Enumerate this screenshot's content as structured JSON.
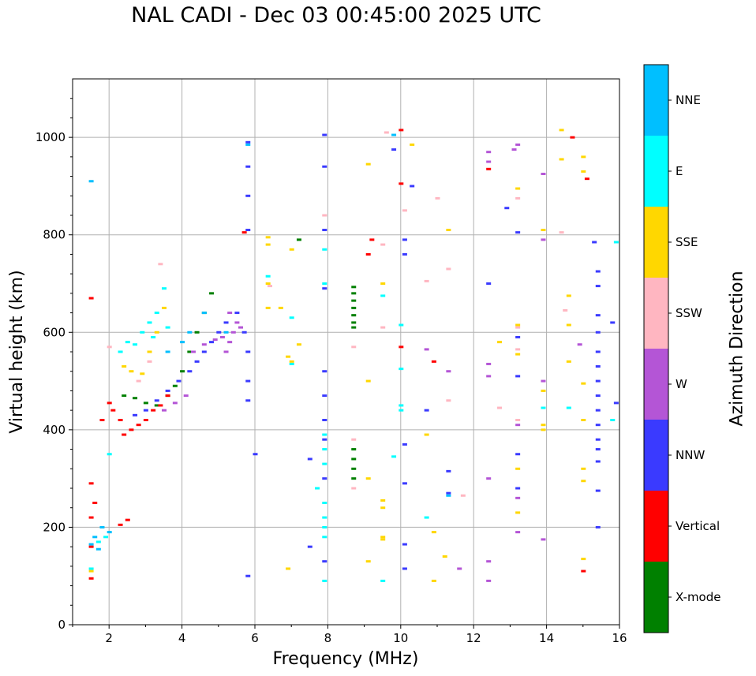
{
  "title": "NAL CADI - Dec 03 00:45:00 2025 UTC",
  "chart_data": {
    "type": "scatter",
    "title": "NAL CADI - Dec 03 00:45:00 2025 UTC",
    "xlabel": "Frequency (MHz)",
    "ylabel": "Virtual height (km)",
    "xlim": [
      1,
      16
    ],
    "ylim": [
      0,
      1120
    ],
    "xticks": [
      2,
      4,
      6,
      8,
      10,
      12,
      14,
      16
    ],
    "yticks": [
      0,
      200,
      400,
      600,
      800,
      1000
    ],
    "grid": true,
    "colorbar": {
      "label": "Azimuth Direction",
      "categories": [
        "X-mode",
        "Vertical",
        "NNW",
        "W",
        "SSW",
        "SSE",
        "E",
        "NNE"
      ],
      "colors": [
        "#008000",
        "#ff0000",
        "#3a3aff",
        "#b455d6",
        "#ffb6c1",
        "#ffd700",
        "#00ffff",
        "#00bfff"
      ]
    },
    "series": [
      {
        "name": "X-mode",
        "color": "#008000",
        "points": [
          [
            2.4,
            470
          ],
          [
            2.7,
            465
          ],
          [
            3.0,
            455
          ],
          [
            3.3,
            450
          ],
          [
            3.6,
            470
          ],
          [
            3.8,
            490
          ],
          [
            4.0,
            520
          ],
          [
            4.2,
            560
          ],
          [
            4.4,
            600
          ],
          [
            4.6,
            640
          ],
          [
            4.8,
            680
          ],
          [
            8.7,
            693
          ],
          [
            8.7,
            680
          ],
          [
            8.7,
            665
          ],
          [
            8.7,
            650
          ],
          [
            8.7,
            635
          ],
          [
            8.7,
            620
          ],
          [
            8.7,
            610
          ],
          [
            8.7,
            360
          ],
          [
            8.7,
            340
          ],
          [
            8.7,
            320
          ],
          [
            8.7,
            300
          ],
          [
            7.2,
            790
          ]
        ]
      },
      {
        "name": "Vertical",
        "color": "#ff0000",
        "points": [
          [
            1.5,
            670
          ],
          [
            1.5,
            290
          ],
          [
            1.5,
            220
          ],
          [
            1.6,
            250
          ],
          [
            1.5,
            160
          ],
          [
            1.5,
            95
          ],
          [
            1.8,
            420
          ],
          [
            2.0,
            455
          ],
          [
            2.1,
            440
          ],
          [
            2.3,
            420
          ],
          [
            2.4,
            390
          ],
          [
            2.6,
            400
          ],
          [
            2.8,
            410
          ],
          [
            3.0,
            420
          ],
          [
            3.2,
            440
          ],
          [
            3.4,
            450
          ],
          [
            3.6,
            470
          ],
          [
            5.7,
            805
          ],
          [
            9.2,
            790
          ],
          [
            9.1,
            760
          ],
          [
            10.0,
            1015
          ],
          [
            10.0,
            905
          ],
          [
            10.0,
            570
          ],
          [
            10.9,
            540
          ],
          [
            14.7,
            1000
          ],
          [
            15.1,
            915
          ],
          [
            15.0,
            110
          ],
          [
            12.4,
            935
          ],
          [
            2.3,
            205
          ],
          [
            2.5,
            215
          ]
        ]
      },
      {
        "name": "NNW",
        "color": "#3a3aff",
        "points": [
          [
            2.7,
            430
          ],
          [
            3.0,
            440
          ],
          [
            3.3,
            460
          ],
          [
            3.6,
            480
          ],
          [
            3.9,
            500
          ],
          [
            4.2,
            520
          ],
          [
            4.4,
            540
          ],
          [
            4.6,
            560
          ],
          [
            4.8,
            580
          ],
          [
            5.0,
            600
          ],
          [
            5.2,
            620
          ],
          [
            5.5,
            640
          ],
          [
            5.7,
            600
          ],
          [
            5.8,
            560
          ],
          [
            5.8,
            500
          ],
          [
            5.8,
            460
          ],
          [
            5.8,
            100
          ],
          [
            5.8,
            990
          ],
          [
            5.8,
            940
          ],
          [
            5.8,
            880
          ],
          [
            5.8,
            810
          ],
          [
            6.0,
            350
          ],
          [
            7.5,
            340
          ],
          [
            7.5,
            160
          ],
          [
            7.9,
            1005
          ],
          [
            7.9,
            940
          ],
          [
            7.9,
            810
          ],
          [
            7.9,
            690
          ],
          [
            7.9,
            520
          ],
          [
            7.9,
            470
          ],
          [
            7.9,
            420
          ],
          [
            7.9,
            380
          ],
          [
            7.9,
            300
          ],
          [
            7.9,
            130
          ],
          [
            9.8,
            975
          ],
          [
            10.1,
            790
          ],
          [
            10.1,
            760
          ],
          [
            10.1,
            370
          ],
          [
            10.1,
            290
          ],
          [
            10.1,
            165
          ],
          [
            10.1,
            115
          ],
          [
            10.3,
            900
          ],
          [
            10.7,
            440
          ],
          [
            11.3,
            270
          ],
          [
            11.3,
            315
          ],
          [
            12.4,
            700
          ],
          [
            12.9,
            855
          ],
          [
            13.2,
            805
          ],
          [
            13.2,
            590
          ],
          [
            13.2,
            510
          ],
          [
            13.2,
            350
          ],
          [
            13.2,
            280
          ],
          [
            15.3,
            785
          ],
          [
            15.4,
            725
          ],
          [
            15.4,
            695
          ],
          [
            15.4,
            635
          ],
          [
            15.4,
            600
          ],
          [
            15.4,
            560
          ],
          [
            15.4,
            530
          ],
          [
            15.4,
            500
          ],
          [
            15.4,
            470
          ],
          [
            15.4,
            440
          ],
          [
            15.4,
            410
          ],
          [
            15.4,
            380
          ],
          [
            15.4,
            360
          ],
          [
            15.4,
            335
          ],
          [
            15.4,
            275
          ],
          [
            15.4,
            200
          ],
          [
            15.8,
            620
          ],
          [
            15.9,
            455
          ]
        ]
      },
      {
        "name": "W",
        "color": "#b455d6",
        "points": [
          [
            4.3,
            560
          ],
          [
            4.6,
            575
          ],
          [
            4.9,
            585
          ],
          [
            5.1,
            590
          ],
          [
            5.3,
            580
          ],
          [
            5.4,
            600
          ],
          [
            5.2,
            560
          ],
          [
            5.5,
            620
          ],
          [
            5.3,
            640
          ],
          [
            5.6,
            610
          ],
          [
            3.5,
            440
          ],
          [
            3.8,
            455
          ],
          [
            4.1,
            470
          ],
          [
            10.7,
            565
          ],
          [
            11.3,
            520
          ],
          [
            12.4,
            970
          ],
          [
            12.4,
            950
          ],
          [
            12.4,
            535
          ],
          [
            12.4,
            510
          ],
          [
            12.4,
            300
          ],
          [
            12.4,
            130
          ],
          [
            12.4,
            90
          ],
          [
            13.2,
            985
          ],
          [
            13.2,
            410
          ],
          [
            13.2,
            260
          ],
          [
            13.2,
            190
          ],
          [
            13.9,
            790
          ],
          [
            13.9,
            500
          ],
          [
            13.9,
            925
          ],
          [
            13.9,
            175
          ],
          [
            14.9,
            575
          ],
          [
            11.6,
            115
          ],
          [
            13.1,
            975
          ]
        ]
      },
      {
        "name": "SSW",
        "color": "#ffb6c1",
        "points": [
          [
            2.0,
            570
          ],
          [
            2.8,
            500
          ],
          [
            3.1,
            540
          ],
          [
            3.4,
            740
          ],
          [
            6.4,
            695
          ],
          [
            7.9,
            840
          ],
          [
            8.7,
            570
          ],
          [
            8.7,
            380
          ],
          [
            8.7,
            280
          ],
          [
            9.5,
            780
          ],
          [
            9.5,
            610
          ],
          [
            10.1,
            850
          ],
          [
            10.7,
            705
          ],
          [
            11.0,
            875
          ],
          [
            11.3,
            460
          ],
          [
            11.3,
            730
          ],
          [
            11.7,
            265
          ],
          [
            12.7,
            445
          ],
          [
            13.2,
            875
          ],
          [
            13.2,
            610
          ],
          [
            13.2,
            565
          ],
          [
            13.2,
            420
          ],
          [
            14.4,
            805
          ],
          [
            14.5,
            645
          ],
          [
            9.6,
            1010
          ]
        ]
      },
      {
        "name": "SSE",
        "color": "#ffd700",
        "points": [
          [
            2.4,
            530
          ],
          [
            2.6,
            520
          ],
          [
            2.9,
            515
          ],
          [
            3.1,
            560
          ],
          [
            3.3,
            600
          ],
          [
            3.5,
            650
          ],
          [
            6.35,
            795
          ],
          [
            6.35,
            780
          ],
          [
            6.35,
            650
          ],
          [
            6.35,
            700
          ],
          [
            6.7,
            650
          ],
          [
            6.9,
            550
          ],
          [
            7.0,
            540
          ],
          [
            7.0,
            770
          ],
          [
            7.2,
            575
          ],
          [
            6.9,
            115
          ],
          [
            9.1,
            945
          ],
          [
            9.1,
            500
          ],
          [
            9.1,
            300
          ],
          [
            9.1,
            130
          ],
          [
            9.5,
            255
          ],
          [
            9.5,
            240
          ],
          [
            9.5,
            180
          ],
          [
            9.5,
            175
          ],
          [
            9.5,
            700
          ],
          [
            10.3,
            985
          ],
          [
            10.7,
            390
          ],
          [
            10.9,
            190
          ],
          [
            10.9,
            90
          ],
          [
            11.2,
            140
          ],
          [
            11.3,
            810
          ],
          [
            12.7,
            580
          ],
          [
            13.2,
            895
          ],
          [
            13.2,
            615
          ],
          [
            13.2,
            555
          ],
          [
            13.2,
            230
          ],
          [
            13.2,
            320
          ],
          [
            13.9,
            810
          ],
          [
            13.9,
            480
          ],
          [
            13.9,
            410
          ],
          [
            13.9,
            400
          ],
          [
            14.4,
            1015
          ],
          [
            14.4,
            955
          ],
          [
            14.6,
            675
          ],
          [
            14.6,
            615
          ],
          [
            14.6,
            540
          ],
          [
            15.0,
            960
          ],
          [
            15.0,
            930
          ],
          [
            15.0,
            495
          ],
          [
            15.0,
            420
          ],
          [
            15.0,
            320
          ],
          [
            15.0,
            295
          ],
          [
            15.0,
            135
          ],
          [
            1.5,
            110
          ]
        ]
      },
      {
        "name": "E",
        "color": "#00ffff",
        "points": [
          [
            2.0,
            350
          ],
          [
            2.3,
            560
          ],
          [
            2.5,
            580
          ],
          [
            2.7,
            575
          ],
          [
            2.9,
            600
          ],
          [
            3.1,
            620
          ],
          [
            3.3,
            640
          ],
          [
            3.5,
            690
          ],
          [
            3.6,
            610
          ],
          [
            3.2,
            590
          ],
          [
            1.5,
            115
          ],
          [
            1.7,
            170
          ],
          [
            1.9,
            180
          ],
          [
            6.35,
            715
          ],
          [
            7.0,
            630
          ],
          [
            7.0,
            535
          ],
          [
            7.7,
            280
          ],
          [
            7.9,
            390
          ],
          [
            7.9,
            360
          ],
          [
            7.9,
            330
          ],
          [
            7.9,
            250
          ],
          [
            7.9,
            220
          ],
          [
            7.9,
            200
          ],
          [
            7.9,
            180
          ],
          [
            7.9,
            90
          ],
          [
            7.9,
            770
          ],
          [
            7.9,
            700
          ],
          [
            9.5,
            675
          ],
          [
            9.5,
            90
          ],
          [
            9.8,
            345
          ],
          [
            10.0,
            615
          ],
          [
            10.0,
            440
          ],
          [
            10.0,
            450
          ],
          [
            10.0,
            525
          ],
          [
            10.7,
            220
          ],
          [
            13.9,
            445
          ],
          [
            14.6,
            445
          ],
          [
            15.9,
            785
          ],
          [
            15.8,
            420
          ]
        ]
      },
      {
        "name": "NNE",
        "color": "#00bfff",
        "points": [
          [
            1.5,
            910
          ],
          [
            1.5,
            165
          ],
          [
            1.6,
            180
          ],
          [
            1.7,
            155
          ],
          [
            1.8,
            200
          ],
          [
            2.0,
            190
          ],
          [
            5.8,
            985
          ],
          [
            9.8,
            1005
          ],
          [
            11.3,
            265
          ],
          [
            3.6,
            560
          ],
          [
            4.0,
            580
          ],
          [
            4.2,
            600
          ],
          [
            4.6,
            640
          ],
          [
            5.2,
            600
          ]
        ]
      }
    ]
  }
}
